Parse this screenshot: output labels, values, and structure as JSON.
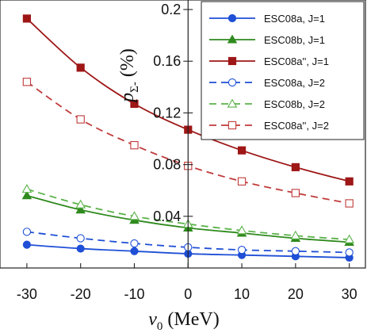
{
  "chart_data": {
    "type": "line",
    "x": [
      -30,
      -20,
      -10,
      0,
      10,
      20,
      30
    ],
    "xlim": [
      -35,
      33
    ],
    "ylim": [
      0,
      0.2
    ],
    "xticks": [
      "-30",
      "-20",
      "-10",
      "0",
      "10",
      "20",
      "30"
    ],
    "yticks": [
      "0.04",
      "0.08",
      "0.12",
      "0.16",
      "0.2"
    ],
    "ytick_values": [
      0.04,
      0.08,
      0.12,
      0.16,
      0.2
    ],
    "xlabel": {
      "var": "v",
      "sub": "0",
      "rest": " (MeV)"
    },
    "ylabel": {
      "var": "p",
      "sub": "Σ-",
      "rest": " (%)"
    },
    "grid": false,
    "legend_position": "top-right",
    "series": [
      {
        "name": "ESC08a,  J=1",
        "color": "#1f4fd6",
        "marker": "circle",
        "filled": true,
        "dashed": false,
        "values": [
          0.018,
          0.015,
          0.013,
          0.011,
          0.01,
          0.009,
          0.008
        ]
      },
      {
        "name": "ESC08b,  J=1",
        "color": "#2f8a1e",
        "marker": "triangle",
        "filled": true,
        "dashed": false,
        "values": [
          0.056,
          0.045,
          0.037,
          0.031,
          0.027,
          0.023,
          0.02
        ]
      },
      {
        "name": "ESC08a'', J=1",
        "color": "#9e1616",
        "marker": "square",
        "filled": true,
        "dashed": false,
        "values": [
          0.193,
          0.155,
          0.127,
          0.107,
          0.091,
          0.078,
          0.067
        ]
      },
      {
        "name": "ESC08a,  J=2",
        "color": "#1f4fd6",
        "marker": "circle",
        "filled": false,
        "dashed": true,
        "values": [
          0.028,
          0.023,
          0.019,
          0.016,
          0.014,
          0.013,
          0.012
        ]
      },
      {
        "name": "ESC08b,  J=2",
        "color": "#5bb24a",
        "marker": "triangle",
        "filled": false,
        "dashed": true,
        "values": [
          0.061,
          0.049,
          0.04,
          0.034,
          0.029,
          0.025,
          0.022
        ]
      },
      {
        "name": "ESC08a'', J=2",
        "color": "#c03a3a",
        "marker": "square",
        "filled": false,
        "dashed": true,
        "values": [
          0.144,
          0.115,
          0.095,
          0.079,
          0.067,
          0.058,
          0.05
        ]
      }
    ]
  }
}
